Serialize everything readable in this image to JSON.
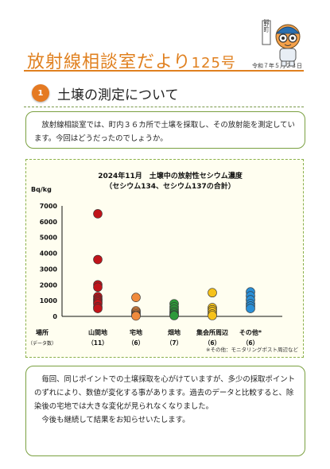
{
  "header": {
    "title": "放射線相談室だより",
    "issue": "125号",
    "date": "令和７年５月２３日",
    "mascot_label": "広野町",
    "accent_color": "#e0801f"
  },
  "section": {
    "number": "1",
    "title": "土壌の測定について",
    "badge_color": "#e57a22"
  },
  "intro": {
    "text": "放射線相談室では、町内３６カ所で土壌を採取し、その放射能を測定しています。今回はどうだったのでしょうか。"
  },
  "chart_data": {
    "type": "scatter",
    "title": "2024年11月　土壌中の放射性セシウム濃度",
    "subtitle": "（セシウム134、セシウム137の合計）",
    "ylabel": "Bq/kg",
    "ylim": [
      0,
      7000
    ],
    "yticks": [
      0,
      1000,
      2000,
      3000,
      4000,
      5000,
      6000,
      7000
    ],
    "grid": false,
    "x_axis_label": "場所",
    "count_label": "（データ数）",
    "note": "※その他：モニタリングポスト周辺など",
    "categories": [
      {
        "name": "山間地",
        "count": "（11）",
        "color": "#c0141a",
        "values": [
          6500,
          3600,
          2000,
          1850,
          1250,
          1100,
          1000,
          900,
          800,
          600,
          500
        ]
      },
      {
        "name": "宅地",
        "count": "（6）",
        "color": "#f08a3c",
        "values": [
          1200,
          350,
          250,
          150,
          80,
          30
        ]
      },
      {
        "name": "畑地",
        "count": "（7）",
        "color": "#2e9a3a",
        "values": [
          800,
          600,
          450,
          300,
          200,
          100,
          50
        ]
      },
      {
        "name": "集会所周辺",
        "count": "（6）",
        "color": "#f6c21a",
        "values": [
          1500,
          550,
          420,
          300,
          150,
          50
        ]
      },
      {
        "name": "その他*",
        "count": "（6）",
        "color": "#2b8fd6",
        "values": [
          1550,
          1300,
          1050,
          800,
          650,
          500
        ]
      }
    ]
  },
  "closing": {
    "paragraph1": "毎回、同じポイントでの土壌採取を心がけていますが、多少の採取ポイントのずれにより、数値が変化する事があります。過去のデータと比較すると、除染後の宅地では大きな変化が見られなくなりました。",
    "paragraph2": "今後も継続して結果をお知らせいたします。"
  }
}
